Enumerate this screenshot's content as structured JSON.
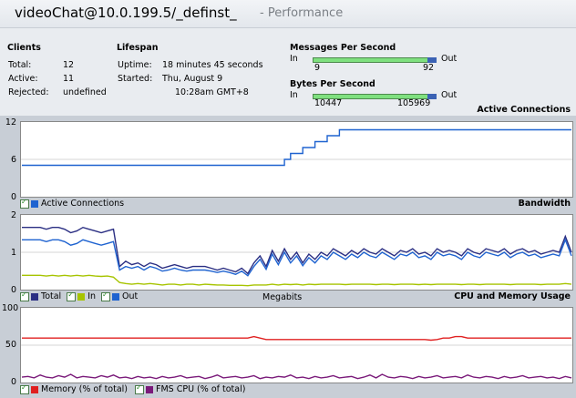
{
  "header": {
    "title": "videoChat@10.0.199.5/_definst_",
    "subtitle": "- Performance"
  },
  "clients": {
    "heading": "Clients",
    "total_label": "Total:",
    "total": "12",
    "active_label": "Active:",
    "active": "11",
    "rejected_label": "Rejected:",
    "rejected": "undefined"
  },
  "lifespan": {
    "heading": "Lifespan",
    "uptime_label": "Uptime:",
    "uptime": "18 minutes 45 seconds",
    "started_label": "Started:",
    "started_date": "Thu, August 9",
    "started_time": "10:28am GMT+8"
  },
  "messages": {
    "heading": "Messages Per Second",
    "in_label": "In",
    "out_label": "Out",
    "in": "9",
    "out": "92"
  },
  "bytes": {
    "heading": "Bytes Per Second",
    "in_label": "In",
    "out_label": "Out",
    "in": "10447",
    "out": "105969"
  },
  "colors": {
    "blue": "#1f63d0",
    "navy": "#2b2f83",
    "lime": "#a7c400",
    "red": "#e02020",
    "purple": "#7a1a7a"
  },
  "chart_data": [
    {
      "type": "line",
      "title": "Active Connections",
      "ylim": [
        0,
        12
      ],
      "yticks": [
        "12",
        "6",
        "0"
      ],
      "series": [
        {
          "name": "Active Connections",
          "values": [
            5,
            5,
            5,
            5,
            5,
            5,
            5,
            5,
            5,
            5,
            5,
            5,
            5,
            5,
            5,
            5,
            5,
            5,
            5,
            5,
            5,
            5,
            5,
            5,
            5,
            5,
            5,
            5,
            5,
            5,
            5,
            5,
            5,
            5,
            5,
            5,
            5,
            5,
            5,
            5,
            5,
            5,
            5,
            6,
            7,
            7,
            8,
            8,
            9,
            9,
            10,
            10,
            11,
            11,
            11,
            11,
            11,
            11,
            11,
            11,
            11,
            11,
            11,
            11,
            11,
            11,
            11,
            11,
            11,
            11,
            11,
            11,
            11,
            11,
            11,
            11,
            11,
            11,
            11,
            11,
            11,
            11,
            11,
            11,
            11,
            11,
            11,
            11,
            11,
            11,
            11
          ]
        }
      ]
    },
    {
      "type": "line",
      "title": "Bandwidth",
      "xlabel": "Megabits",
      "ylim": [
        0,
        2
      ],
      "yticks": [
        "2",
        "1",
        "0"
      ],
      "series": [
        {
          "name": "Total",
          "values": [
            1.7,
            1.7,
            1.7,
            1.7,
            1.65,
            1.7,
            1.7,
            1.65,
            1.55,
            1.6,
            1.7,
            1.65,
            1.6,
            1.55,
            1.6,
            1.65,
            0.6,
            0.75,
            0.65,
            0.7,
            0.6,
            0.7,
            0.65,
            0.55,
            0.6,
            0.65,
            0.6,
            0.55,
            0.6,
            0.6,
            0.6,
            0.55,
            0.5,
            0.55,
            0.5,
            0.45,
            0.55,
            0.4,
            0.7,
            0.9,
            0.6,
            1.05,
            0.75,
            1.1,
            0.8,
            1.0,
            0.7,
            0.95,
            0.8,
            1.0,
            0.9,
            1.1,
            1.0,
            0.9,
            1.05,
            0.95,
            1.1,
            1.0,
            0.95,
            1.1,
            1.0,
            0.9,
            1.05,
            1.0,
            1.1,
            0.95,
            1.0,
            0.9,
            1.1,
            1.0,
            1.05,
            1.0,
            0.9,
            1.1,
            1.0,
            0.95,
            1.1,
            1.05,
            1.0,
            1.1,
            0.95,
            1.05,
            1.1,
            1.0,
            1.05,
            0.95,
            1.0,
            1.05,
            1.0,
            1.45,
            1.0
          ]
        },
        {
          "name": "In",
          "values": [
            0.35,
            0.35,
            0.35,
            0.35,
            0.33,
            0.35,
            0.33,
            0.35,
            0.33,
            0.35,
            0.33,
            0.35,
            0.33,
            0.32,
            0.33,
            0.3,
            0.15,
            0.12,
            0.1,
            0.12,
            0.1,
            0.12,
            0.1,
            0.08,
            0.1,
            0.1,
            0.08,
            0.1,
            0.1,
            0.08,
            0.1,
            0.09,
            0.08,
            0.08,
            0.07,
            0.07,
            0.07,
            0.06,
            0.08,
            0.08,
            0.08,
            0.1,
            0.08,
            0.1,
            0.09,
            0.1,
            0.08,
            0.1,
            0.09,
            0.1,
            0.1,
            0.1,
            0.1,
            0.09,
            0.1,
            0.1,
            0.1,
            0.1,
            0.09,
            0.1,
            0.1,
            0.09,
            0.1,
            0.1,
            0.1,
            0.09,
            0.1,
            0.09,
            0.1,
            0.1,
            0.1,
            0.1,
            0.09,
            0.1,
            0.1,
            0.09,
            0.1,
            0.1,
            0.1,
            0.1,
            0.09,
            0.1,
            0.1,
            0.1,
            0.1,
            0.09,
            0.1,
            0.1,
            0.1,
            0.12,
            0.1
          ]
        },
        {
          "name": "Out",
          "values": [
            1.35,
            1.35,
            1.35,
            1.35,
            1.3,
            1.35,
            1.35,
            1.3,
            1.2,
            1.25,
            1.35,
            1.3,
            1.25,
            1.2,
            1.25,
            1.3,
            0.5,
            0.6,
            0.55,
            0.6,
            0.5,
            0.6,
            0.55,
            0.47,
            0.5,
            0.55,
            0.5,
            0.47,
            0.5,
            0.5,
            0.5,
            0.47,
            0.43,
            0.47,
            0.43,
            0.38,
            0.47,
            0.34,
            0.6,
            0.8,
            0.52,
            0.95,
            0.65,
            1.0,
            0.7,
            0.9,
            0.62,
            0.85,
            0.7,
            0.9,
            0.8,
            1.0,
            0.9,
            0.8,
            0.95,
            0.85,
            1.0,
            0.9,
            0.85,
            1.0,
            0.9,
            0.8,
            0.95,
            0.9,
            1.0,
            0.85,
            0.9,
            0.8,
            1.0,
            0.9,
            0.95,
            0.9,
            0.8,
            1.0,
            0.9,
            0.85,
            1.0,
            0.95,
            0.9,
            1.0,
            0.85,
            0.95,
            1.0,
            0.9,
            0.95,
            0.85,
            0.9,
            0.95,
            0.9,
            1.35,
            0.9
          ]
        }
      ]
    },
    {
      "type": "line",
      "title": "CPU and Memory Usage",
      "ylim": [
        0,
        100
      ],
      "yticks": [
        "100",
        "50",
        "0"
      ],
      "series": [
        {
          "name": "Memory (% of total)",
          "values": [
            60,
            60,
            60,
            60,
            60,
            60,
            60,
            60,
            60,
            60,
            60,
            60,
            60,
            60,
            60,
            60,
            60,
            60,
            60,
            60,
            60,
            60,
            60,
            60,
            60,
            60,
            60,
            60,
            60,
            60,
            60,
            60,
            60,
            60,
            60,
            60,
            60,
            60,
            62,
            60,
            58,
            58,
            58,
            58,
            58,
            58,
            58,
            58,
            58,
            58,
            58,
            58,
            58,
            58,
            58,
            58,
            58,
            58,
            58,
            58,
            58,
            58,
            58,
            58,
            58,
            58,
            58,
            57,
            58,
            60,
            60,
            62,
            62,
            60,
            60,
            60,
            60,
            60,
            60,
            60,
            60,
            60,
            60,
            60,
            60,
            60,
            60,
            60,
            60,
            60,
            60
          ]
        },
        {
          "name": "FMS CPU (% of total)",
          "values": [
            5,
            6,
            4,
            8,
            5,
            4,
            7,
            5,
            9,
            4,
            6,
            5,
            4,
            7,
            5,
            8,
            4,
            5,
            3,
            6,
            4,
            5,
            3,
            6,
            4,
            5,
            7,
            4,
            5,
            6,
            3,
            5,
            8,
            4,
            5,
            6,
            4,
            5,
            7,
            3,
            5,
            4,
            6,
            5,
            8,
            4,
            5,
            3,
            6,
            4,
            5,
            7,
            4,
            5,
            6,
            3,
            5,
            8,
            4,
            9,
            5,
            4,
            6,
            5,
            3,
            6,
            4,
            5,
            7,
            4,
            5,
            6,
            4,
            8,
            5,
            4,
            6,
            5,
            3,
            6,
            4,
            5,
            7,
            4,
            5,
            6,
            4,
            5,
            3,
            6,
            4
          ]
        }
      ]
    }
  ],
  "legends": {
    "active": [
      "Active Connections"
    ],
    "bandwidth": [
      "Total",
      "In",
      "Out"
    ],
    "cpu": [
      "Memory (% of total)",
      "FMS CPU (% of total)"
    ]
  }
}
